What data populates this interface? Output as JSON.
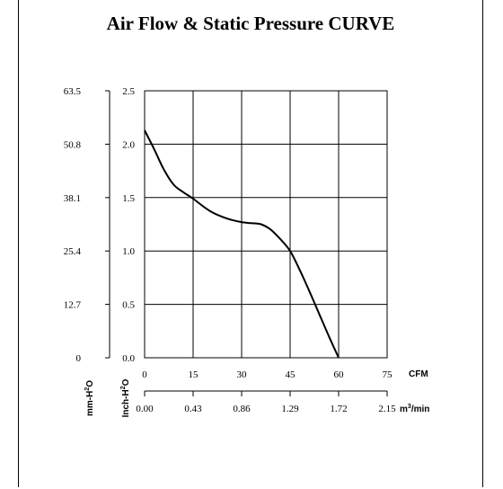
{
  "chart_data": {
    "type": "line",
    "title": "Air Flow & Static Pressure CURVE",
    "x_primary": {
      "unit": "CFM",
      "ticks": [
        0,
        15,
        30,
        45,
        60,
        75
      ],
      "tick_labels": [
        "0",
        "15",
        "30",
        "45",
        "60",
        "75"
      ],
      "range": [
        0,
        75
      ]
    },
    "x_secondary": {
      "unit_base": "m",
      "unit_sup": "3",
      "unit_rest": "/min",
      "tick_labels": [
        "0.00",
        "0.43",
        "0.86",
        "1.29",
        "1.72",
        "2.15"
      ]
    },
    "y_primary": {
      "unit_base": "Inch-H",
      "unit_sup": "2",
      "unit_rest": "O",
      "ticks": [
        0,
        0.5,
        1.0,
        1.5,
        2.0,
        2.5
      ],
      "tick_labels": [
        "0.0",
        "0.5",
        "1.0",
        "1.5",
        "2.0",
        "2.5"
      ],
      "range": [
        0,
        2.5
      ]
    },
    "y_secondary": {
      "unit_base": "mm-H",
      "unit_sup": "2",
      "unit_rest": "O",
      "tick_labels": [
        "0",
        "12.7",
        "25.4",
        "38.1",
        "50.8",
        "63.5"
      ]
    },
    "grid": true,
    "series": [
      {
        "color": "#000000",
        "x": [
          0,
          3,
          6,
          9,
          12,
          15,
          18,
          21,
          24,
          27,
          30,
          33,
          36,
          39,
          42,
          45,
          48,
          51,
          54,
          57,
          60
        ],
        "y": [
          2.13,
          1.95,
          1.76,
          1.62,
          1.55,
          1.49,
          1.42,
          1.36,
          1.32,
          1.29,
          1.27,
          1.26,
          1.25,
          1.2,
          1.11,
          1.0,
          0.82,
          0.62,
          0.41,
          0.2,
          0.0
        ]
      }
    ]
  }
}
